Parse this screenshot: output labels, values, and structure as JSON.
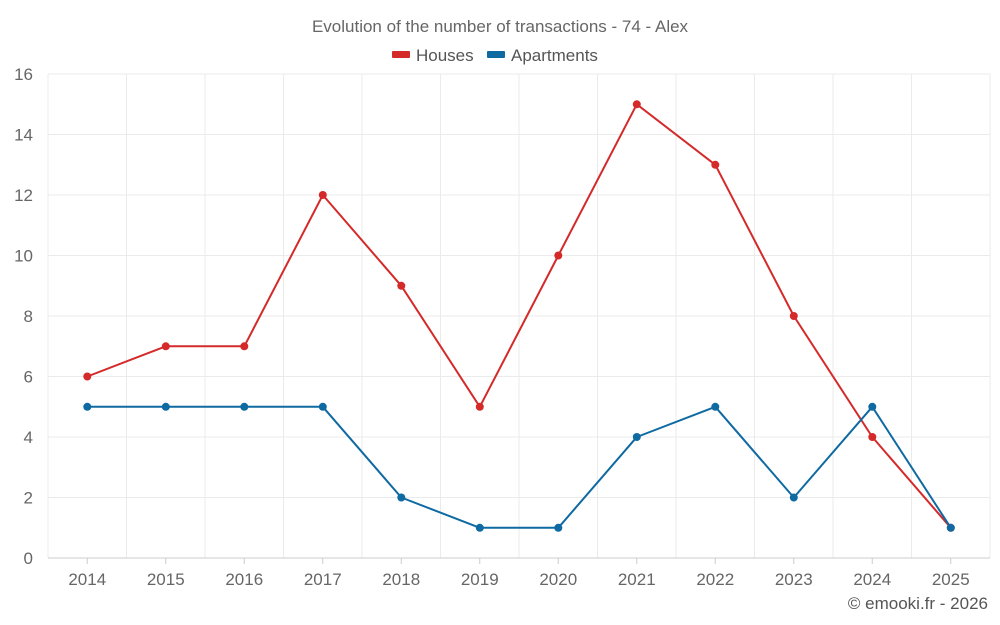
{
  "chart_data": {
    "type": "line",
    "title": "Evolution of the number of transactions - 74 - Alex",
    "xlabel": "",
    "ylabel": "",
    "categories": [
      "2014",
      "2015",
      "2016",
      "2017",
      "2018",
      "2019",
      "2020",
      "2021",
      "2022",
      "2023",
      "2024",
      "2025"
    ],
    "ylim": [
      0,
      16
    ],
    "yticks": [
      0,
      2,
      4,
      6,
      8,
      10,
      12,
      14,
      16
    ],
    "grid": true,
    "legend_position": "top-center",
    "series": [
      {
        "name": "Houses",
        "color": "#d42a2a",
        "values": [
          6,
          7,
          7,
          12,
          9,
          5,
          10,
          15,
          13,
          8,
          4,
          1
        ]
      },
      {
        "name": "Apartments",
        "color": "#0f6aa1",
        "values": [
          5,
          5,
          5,
          5,
          2,
          1,
          1,
          4,
          5,
          2,
          5,
          1
        ]
      }
    ]
  },
  "credit": "© emooki.fr - 2026"
}
